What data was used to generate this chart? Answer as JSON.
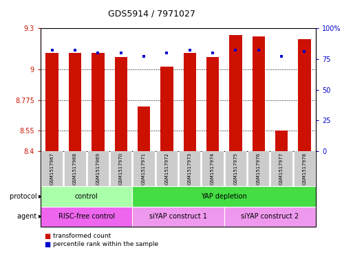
{
  "title": "GDS5914 / 7971027",
  "samples": [
    "GSM1517967",
    "GSM1517968",
    "GSM1517969",
    "GSM1517970",
    "GSM1517971",
    "GSM1517972",
    "GSM1517973",
    "GSM1517974",
    "GSM1517975",
    "GSM1517976",
    "GSM1517977",
    "GSM1517978"
  ],
  "transformed_counts": [
    9.12,
    9.12,
    9.12,
    9.09,
    8.73,
    9.02,
    9.12,
    9.09,
    9.25,
    9.24,
    8.55,
    9.22
  ],
  "percentile_ranks": [
    82,
    82,
    80,
    80,
    77,
    80,
    82,
    80,
    82,
    82,
    77,
    81
  ],
  "ylim_left": [
    8.4,
    9.3
  ],
  "ylim_right": [
    0,
    100
  ],
  "yticks_left": [
    8.4,
    8.55,
    8.775,
    9.0,
    9.3
  ],
  "yticks_right": [
    0,
    25,
    50,
    75,
    100
  ],
  "ytick_labels_left": [
    "8.4",
    "8.55",
    "8.775",
    "9",
    "9.3"
  ],
  "ytick_labels_right": [
    "0",
    "25",
    "50",
    "75",
    "100%"
  ],
  "bar_color": "#cc1100",
  "dot_color": "#0000cc",
  "bar_bottom": 8.4,
  "protocol_groups": [
    {
      "label": "control",
      "start": 0,
      "end": 4,
      "color": "#aaffaa"
    },
    {
      "label": "YAP depletion",
      "start": 4,
      "end": 12,
      "color": "#44dd44"
    }
  ],
  "agent_groups": [
    {
      "label": "RISC-free control",
      "start": 0,
      "end": 4,
      "color": "#ee66ee"
    },
    {
      "label": "siYAP construct 1",
      "start": 4,
      "end": 8,
      "color": "#ee99ee"
    },
    {
      "label": "siYAP construct 2",
      "start": 8,
      "end": 12,
      "color": "#ee99ee"
    }
  ],
  "legend_items": [
    {
      "label": "transformed count",
      "color": "#cc1100"
    },
    {
      "label": "percentile rank within the sample",
      "color": "#0000cc"
    }
  ],
  "protocol_label": "protocol",
  "agent_label": "agent",
  "bg_color": "#ffffff",
  "left_axis_color": "#cc1100",
  "right_axis_color": "#0000cc",
  "sample_box_color": "#cccccc",
  "grid_dotted_ticks": [
    8.55,
    8.775,
    9.0
  ]
}
